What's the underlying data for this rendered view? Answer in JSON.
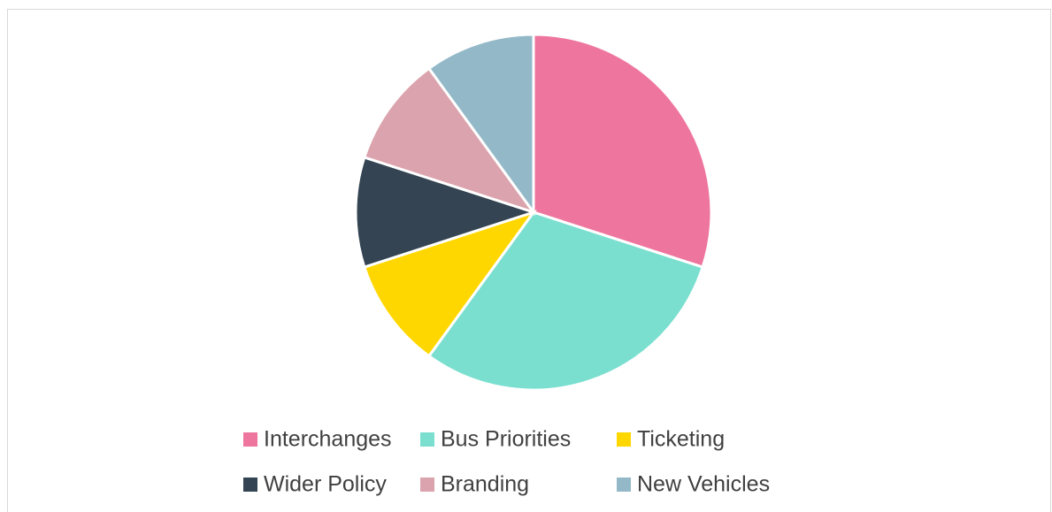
{
  "chart_data": {
    "type": "pie",
    "categories": [
      "Interchanges",
      "Bus Priorities",
      "Ticketing",
      "Wider Policy",
      "Branding",
      "New Vehicles"
    ],
    "values": [
      30,
      30,
      10,
      10,
      10,
      10
    ],
    "colors": [
      "#ee769e",
      "#7adfcf",
      "#ffd700",
      "#344452",
      "#dba3ad",
      "#93b9c8"
    ],
    "legend": "bottom"
  }
}
